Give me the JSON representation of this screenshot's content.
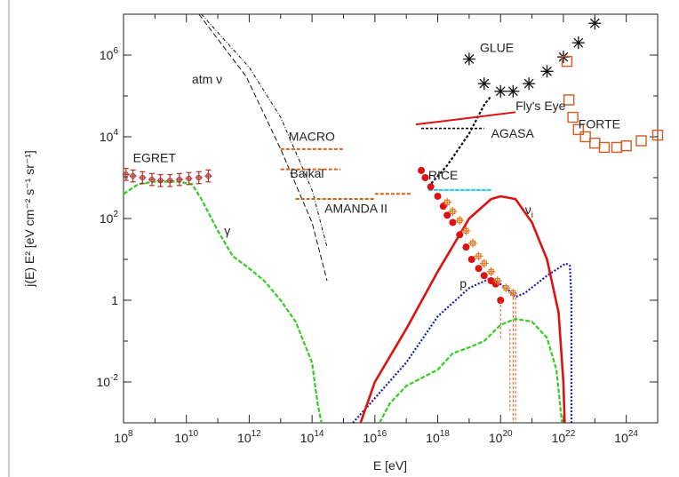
{
  "chart_data": {
    "type": "line",
    "xlabel": "E [eV]",
    "ylabel": "j(E) E² [eV cm⁻² s⁻¹ sr⁻¹]",
    "x_scale": "log",
    "y_scale": "log",
    "xlim": [
      100000000.0,
      1e+25
    ],
    "ylim": [
      0.001,
      10000000.0
    ],
    "grid": false,
    "x_ticks": [
      {
        "value": 100000000.0,
        "base": "10",
        "exp": "8"
      },
      {
        "value": 10000000000.0,
        "base": "10",
        "exp": "10"
      },
      {
        "value": 1000000000000.0,
        "base": "10",
        "exp": "12"
      },
      {
        "value": 100000000000000.0,
        "base": "10",
        "exp": "14"
      },
      {
        "value": 1e+16,
        "base": "10",
        "exp": "16"
      },
      {
        "value": 1e+18,
        "base": "10",
        "exp": "18"
      },
      {
        "value": 1e+20,
        "base": "10",
        "exp": "20"
      },
      {
        "value": 1e+22,
        "base": "10",
        "exp": "22"
      },
      {
        "value": 1e+24,
        "base": "10",
        "exp": "24"
      }
    ],
    "y_ticks": [
      {
        "value": 0.01,
        "base": "10",
        "exp": "-2"
      },
      {
        "value": 1,
        "base": "1",
        "exp": ""
      },
      {
        "value": 100,
        "base": "10",
        "exp": "2"
      },
      {
        "value": 10000,
        "base": "10",
        "exp": "4"
      },
      {
        "value": 1000000,
        "base": "10",
        "exp": "6"
      }
    ],
    "annotations": [
      {
        "name": "atm-nu",
        "text": "atm ν",
        "x": 15000000000.0,
        "y": 200000.0
      },
      {
        "name": "macro",
        "text": "MACRO",
        "x": 18000000000000.0,
        "y": 8000.0
      },
      {
        "name": "baikal",
        "text": "Baikal",
        "x": 20000000000000.0,
        "y": 1000.0
      },
      {
        "name": "amanda",
        "text": "AMANDA II",
        "x": 250000000000000.0,
        "y": 140
      },
      {
        "name": "egret",
        "text": "EGRET",
        "x": 200000000.0,
        "y": 2400.0
      },
      {
        "name": "gamma",
        "text": "γ",
        "x": 160000000000.0,
        "y": 40
      },
      {
        "name": "rice",
        "text": "RICE",
        "x": 5e+17,
        "y": 900
      },
      {
        "name": "glue",
        "text": "GLUE",
        "x": 2.2e+19,
        "y": 1200000.0
      },
      {
        "name": "flys-eye",
        "text": "Fly's Eye",
        "x": 3e+20,
        "y": 45000.0
      },
      {
        "name": "agasa",
        "text": "AGASA",
        "x": 5e+19,
        "y": 9500.0
      },
      {
        "name": "forte",
        "text": "FORTE",
        "x": 3e+22,
        "y": 16000.0
      },
      {
        "name": "nu-i",
        "text": "ν",
        "sub": "i",
        "x": 6e+20,
        "y": 130
      },
      {
        "name": "p",
        "text": "p",
        "x": 5e+18,
        "y": 2
      }
    ],
    "series": [
      {
        "key": "atm1",
        "style": "dash-dot-black",
        "points": [
          [
            30000000000.0,
            10000000.0
          ],
          [
            1000000000000.0,
            500000.0
          ],
          [
            10000000000000.0,
            30000.0
          ],
          [
            100000000000000.0,
            500
          ],
          [
            300000000000000.0,
            20
          ]
        ]
      },
      {
        "key": "atm2",
        "style": "dash-black",
        "points": [
          [
            25000000000.0,
            10000000.0
          ],
          [
            800000000000.0,
            300000.0
          ],
          [
            10000000000000.0,
            5000.0
          ],
          [
            100000000000000.0,
            80
          ],
          [
            300000000000000.0,
            3
          ]
        ]
      },
      {
        "key": "gamma-spectrum",
        "style": "green",
        "points": [
          [
            100000000.0,
            400
          ],
          [
            300000000.0,
            700
          ],
          [
            1000000000.0,
            800
          ],
          [
            5000000000.0,
            800
          ],
          [
            15000000000.0,
            700
          ],
          [
            30000000000.0,
            300
          ],
          [
            100000000000.0,
            50
          ],
          [
            300000000000.0,
            12
          ],
          [
            1000000000000.0,
            6
          ],
          [
            3000000000000.0,
            3
          ],
          [
            10000000000000.0,
            1
          ],
          [
            30000000000000.0,
            0.3
          ],
          [
            100000000000000.0,
            0.03
          ],
          [
            150000000000000.0,
            0.003
          ],
          [
            200000000000000.0,
            0.001
          ]
        ]
      },
      {
        "key": "gzk-neutrino",
        "style": "green",
        "points": [
          [
            1.4e+16,
            0.001
          ],
          [
            3e+16,
            0.003
          ],
          [
            1e+17,
            0.008
          ],
          [
            1e+18,
            0.02
          ],
          [
            3e+18,
            0.05
          ],
          [
            1e+19,
            0.07
          ],
          [
            3e+19,
            0.1
          ],
          [
            1e+20,
            0.25
          ],
          [
            3e+20,
            0.35
          ],
          [
            1e+21,
            0.3
          ],
          [
            3e+21,
            0.12
          ],
          [
            6e+21,
            0.02
          ],
          [
            9e+21,
            0.001
          ]
        ]
      },
      {
        "key": "proton",
        "style": "blue-dotted",
        "points": [
          [
            2000000000000000.0,
            0.001
          ],
          [
            1e+16,
            0.004
          ],
          [
            1e+17,
            0.03
          ],
          [
            1e+18,
            0.4
          ],
          [
            1e+19,
            2
          ],
          [
            5e+19,
            3.5
          ],
          [
            1.5e+20,
            2
          ],
          [
            3e+20,
            1.2
          ],
          [
            6e+20,
            1.5
          ],
          [
            3e+21,
            4
          ],
          [
            1.2e+22,
            8
          ],
          [
            1.6e+22,
            7
          ],
          [
            1.8e+22,
            1
          ],
          [
            1.8e+22,
            0.001
          ]
        ]
      },
      {
        "key": "nu-i",
        "style": "red",
        "points": [
          [
            3500000000000000.0,
            0.001
          ],
          [
            1e+16,
            0.01
          ],
          [
            1e+17,
            0.2
          ],
          [
            1e+18,
            5
          ],
          [
            1e+19,
            100
          ],
          [
            5e+19,
            300
          ],
          [
            1e+20,
            350
          ],
          [
            3e+20,
            300
          ],
          [
            1e+21,
            80
          ],
          [
            3e+21,
            10
          ],
          [
            7e+21,
            0.5
          ],
          [
            1e+22,
            0.01
          ],
          [
            1.1e+22,
            0.001
          ]
        ]
      },
      {
        "key": "glue-trend",
        "style": "dashed-black",
        "points": [
          [
            5e+17,
            600
          ],
          [
            2e+18,
            2000.0
          ],
          [
            1e+19,
            12000.0
          ],
          [
            3e+19,
            60000.0
          ],
          [
            5e+19,
            100000.0
          ]
        ]
      }
    ],
    "limits": [
      {
        "name": "macro",
        "style": "orange-dash",
        "x1": 10000000000000.0,
        "x2": 1000000000000000.0,
        "y": 5000.0
      },
      {
        "name": "baikal",
        "style": "orange-dash",
        "x1": 10000000000000.0,
        "x2": 800000000000000.0,
        "y": 1600.0
      },
      {
        "name": "amanda",
        "style": "orange-dash",
        "x1": 30000000000000.0,
        "x2": 1e+16,
        "y": 300
      },
      {
        "name": "amanda",
        "style": "orange-dash",
        "x1": 1e+16,
        "x2": 1.5e+17,
        "y": 400
      },
      {
        "name": "rice",
        "style": "cyan",
        "x1": 5e+17,
        "x2": 5e+19,
        "y": 500
      },
      {
        "name": "agasa",
        "style": "black-dash",
        "x1": 3e+17,
        "x2": 3e+19,
        "y": 16000.0
      },
      {
        "name": "flys-eye",
        "style": "red-solid",
        "x1": 2e+17,
        "x2": 3e+20,
        "y1": 20000.0,
        "y2": 40000.0
      }
    ],
    "markers": [
      {
        "name": "glue",
        "shape": "star",
        "color": "#111111",
        "points": [
          [
            1e+19,
            800000.0
          ],
          [
            3e+19,
            200000.0
          ],
          [
            1e+20,
            130000.0
          ],
          [
            2.5e+20,
            130000.0
          ],
          [
            8e+20,
            200000.0
          ],
          [
            3e+21,
            400000.0
          ],
          [
            1e+22,
            900000.0
          ],
          [
            3e+22,
            2000000.0
          ],
          [
            1e+23,
            6000000.0
          ]
        ]
      },
      {
        "name": "forte",
        "shape": "square",
        "color": "#d45a1e",
        "points": [
          [
            1.3e+22,
            700000.0
          ],
          [
            1.5e+22,
            80000.0
          ],
          [
            2e+22,
            30000.0
          ],
          [
            3e+22,
            15000.0
          ],
          [
            5e+22,
            10000.0
          ],
          [
            1e+23,
            7000.0
          ],
          [
            2e+23,
            5500.0
          ],
          [
            5e+23,
            5500.0
          ],
          [
            1e+24,
            6000.0
          ],
          [
            3e+24,
            8000.0
          ],
          [
            1e+25,
            11000.0
          ]
        ]
      },
      {
        "name": "egret",
        "shape": "errbar",
        "color": "#b23030",
        "points": [
          [
            120000000.0,
            1200
          ],
          [
            200000000.0,
            1100
          ],
          [
            400000000.0,
            1000
          ],
          [
            800000000.0,
            900
          ],
          [
            1500000000.0,
            850
          ],
          [
            3000000000.0,
            850
          ],
          [
            6000000000.0,
            900
          ],
          [
            12000000000.0,
            950
          ],
          [
            25000000000.0,
            1000
          ],
          [
            50000000000.0,
            1100
          ]
        ]
      },
      {
        "name": "uhecr",
        "shape": "dot",
        "color": "#e01010",
        "points": [
          [
            3e+17,
            1500
          ],
          [
            4e+17,
            1000
          ],
          [
            6e+17,
            600
          ],
          [
            1e+18,
            350
          ],
          [
            1.5e+18,
            200
          ],
          [
            2e+18,
            120
          ],
          [
            3e+18,
            80
          ],
          [
            5e+18,
            40
          ],
          [
            8e+18,
            20
          ],
          [
            1.2e+19,
            10
          ],
          [
            2e+19,
            6
          ],
          [
            3e+19,
            4
          ],
          [
            5e+19,
            3
          ],
          [
            7e+19,
            2.5
          ],
          [
            1e+20,
            1
          ]
        ]
      },
      {
        "name": "uhecr-hires",
        "shape": "cross",
        "color": "#e07820",
        "points": [
          [
            2e+18,
            250
          ],
          [
            3e+18,
            150
          ],
          [
            5e+18,
            90
          ],
          [
            8e+18,
            50
          ],
          [
            1.3e+19,
            25
          ],
          [
            2e+19,
            12
          ],
          [
            3e+19,
            8
          ],
          [
            5e+19,
            5
          ],
          [
            8e+19,
            3
          ],
          [
            1.5e+20,
            2
          ],
          [
            2.5e+20,
            1.5
          ]
        ]
      }
    ]
  }
}
